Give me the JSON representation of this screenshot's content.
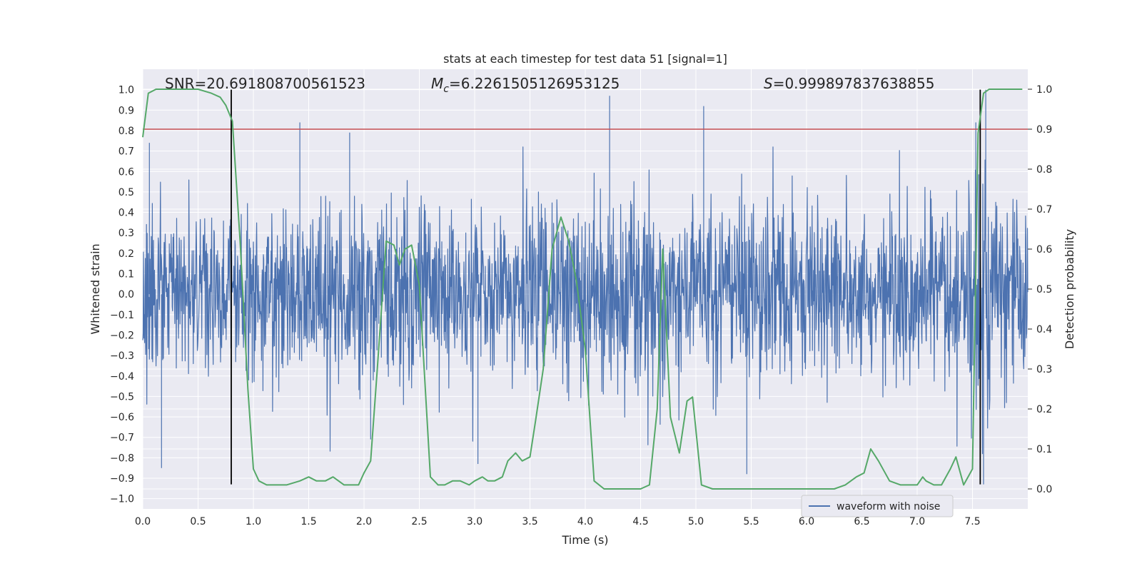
{
  "chart_data": {
    "type": "line",
    "title": "stats at each timestep for test data 51 [signal=1]",
    "xlabel": "Time (s)",
    "ylabel": "Whitened strain",
    "ylabel_right": "Detection probability",
    "xlim": [
      0,
      8
    ],
    "ylim": [
      -1.05,
      1.1
    ],
    "ylim_right": [
      -0.05,
      1.05
    ],
    "xticks": [
      "0.0",
      "0.5",
      "1.0",
      "1.5",
      "2.0",
      "2.5",
      "3.0",
      "3.5",
      "4.0",
      "4.5",
      "5.0",
      "5.5",
      "6.0",
      "6.5",
      "7.0",
      "7.5"
    ],
    "yticks": [
      "1.0",
      "0.9",
      "0.8",
      "0.7",
      "0.6",
      "0.5",
      "0.4",
      "0.3",
      "0.2",
      "0.1",
      "0.0",
      "−0.1",
      "−0.2",
      "−0.3",
      "−0.4",
      "−0.5",
      "−0.6",
      "−0.7",
      "−0.8",
      "−0.9",
      "−1.0"
    ],
    "yticks_right": [
      "1.0",
      "0.9",
      "0.8",
      "0.7",
      "0.6",
      "0.5",
      "0.4",
      "0.3",
      "0.2",
      "0.1",
      "0.0"
    ],
    "grid": true,
    "legend_placement": "lower-right",
    "annotations": {
      "snr_label": "SNR=20.691808700561523",
      "mc_symbol": "M",
      "mc_sub": "c",
      "mc_value": "=6.2261505126953125",
      "s_symbol": "S",
      "s_value": "=0.999897837638855"
    },
    "colors": {
      "background": "#eaeaf2",
      "waveform": "#4c72b0",
      "probability": "#55a868",
      "threshold": "#c44e52",
      "markers": "#000000",
      "grid": "#ffffff"
    },
    "series": [
      {
        "name": "waveform with noise",
        "axis": "left",
        "rendering": "dense noisy strain signal",
        "notable_peaks": [
          {
            "x": 0.06,
            "y": 0.74
          },
          {
            "x": 0.17,
            "y": -0.85
          },
          {
            "x": 1.42,
            "y": 0.84
          },
          {
            "x": 1.87,
            "y": 0.79
          },
          {
            "x": 2.06,
            "y": -0.71
          },
          {
            "x": 3.03,
            "y": -0.83
          },
          {
            "x": 4.22,
            "y": 0.97
          },
          {
            "x": 5.07,
            "y": 0.92
          },
          {
            "x": 5.46,
            "y": -0.88
          },
          {
            "x": 7.53,
            "y": 0.84
          },
          {
            "x": 7.62,
            "y": 1.0
          },
          {
            "x": 7.6,
            "y": -0.93
          }
        ]
      },
      {
        "name": "",
        "axis": "right",
        "x": [
          0.0,
          0.05,
          0.12,
          0.3,
          0.5,
          0.62,
          0.7,
          0.75,
          0.81,
          0.88,
          0.95,
          1.0,
          1.05,
          1.12,
          1.2,
          1.3,
          1.42,
          1.5,
          1.57,
          1.65,
          1.72,
          1.82,
          1.9,
          1.95,
          2.0,
          2.06,
          2.12,
          2.2,
          2.27,
          2.32,
          2.37,
          2.43,
          2.5,
          2.6,
          2.67,
          2.73,
          2.8,
          2.87,
          2.95,
          3.0,
          3.07,
          3.12,
          3.18,
          3.25,
          3.3,
          3.37,
          3.43,
          3.5,
          3.55,
          3.62,
          3.7,
          3.78,
          3.85,
          3.92,
          4.0,
          4.08,
          4.17,
          4.3,
          4.4,
          4.5,
          4.58,
          4.65,
          4.7,
          4.77,
          4.85,
          4.92,
          4.97,
          5.05,
          5.15,
          5.3,
          5.6,
          6.0,
          6.25,
          6.35,
          6.45,
          6.52,
          6.58,
          6.65,
          6.75,
          6.85,
          6.95,
          7.0,
          7.05,
          7.08,
          7.15,
          7.22,
          7.3,
          7.35,
          7.42,
          7.5,
          7.55,
          7.6,
          7.65,
          7.8,
          7.95
        ],
        "values": [
          0.88,
          0.99,
          1.0,
          1.0,
          1.0,
          0.99,
          0.98,
          0.96,
          0.92,
          0.62,
          0.25,
          0.05,
          0.02,
          0.01,
          0.01,
          0.01,
          0.02,
          0.03,
          0.02,
          0.02,
          0.03,
          0.01,
          0.01,
          0.01,
          0.04,
          0.07,
          0.3,
          0.62,
          0.61,
          0.56,
          0.6,
          0.61,
          0.51,
          0.03,
          0.01,
          0.01,
          0.02,
          0.02,
          0.01,
          0.02,
          0.03,
          0.02,
          0.02,
          0.03,
          0.07,
          0.09,
          0.07,
          0.08,
          0.17,
          0.3,
          0.6,
          0.68,
          0.62,
          0.52,
          0.35,
          0.02,
          0.0,
          0.0,
          0.0,
          0.0,
          0.01,
          0.2,
          0.6,
          0.18,
          0.09,
          0.22,
          0.23,
          0.01,
          0.0,
          0.0,
          0.0,
          0.0,
          0.0,
          0.01,
          0.03,
          0.04,
          0.1,
          0.07,
          0.02,
          0.01,
          0.01,
          0.01,
          0.03,
          0.02,
          0.01,
          0.01,
          0.05,
          0.08,
          0.01,
          0.05,
          0.89,
          0.99,
          1.0,
          1.0,
          1.0
        ]
      }
    ],
    "threshold": {
      "axis": "right",
      "value": 0.9
    },
    "vertical_markers": [
      0.8,
      7.57
    ]
  }
}
